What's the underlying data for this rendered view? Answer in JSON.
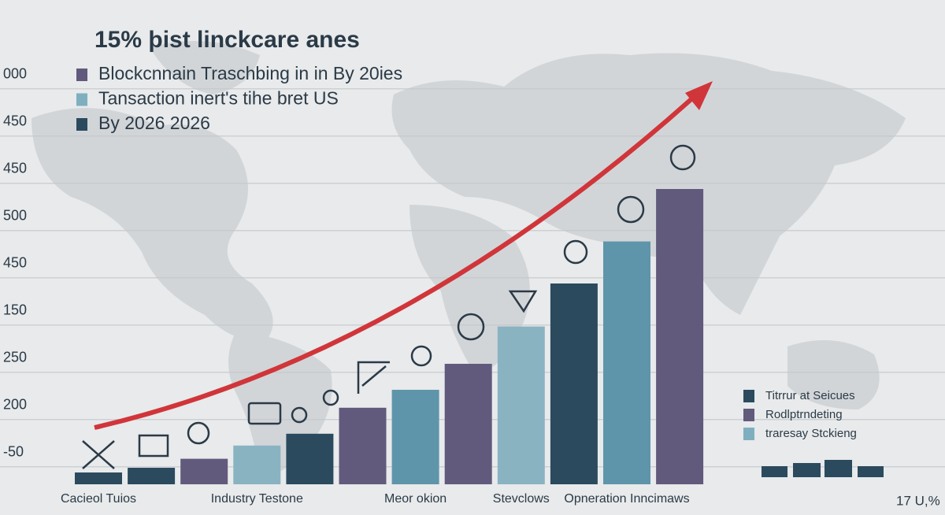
{
  "chart_data": {
    "type": "bar",
    "title": "15% þist linckcare anes",
    "legend": [
      {
        "label": "Blockcnnain Traschbing in in By 20ies",
        "color": "#625a7c"
      },
      {
        "label": "Tansaction inert's tihe bret US",
        "color": "#7fafbf"
      },
      {
        "label": "By 2026 2026",
        "color": "#2b4a5e"
      }
    ],
    "legend2": [
      {
        "label": "Titrrur at Seicues",
        "color": "#2b4a5e"
      },
      {
        "label": "Rodlptrndeting",
        "color": "#625a7c"
      },
      {
        "label": "traresay Stckieng",
        "color": "#7fafbf"
      }
    ],
    "categories": [
      "Cacieol Tuios",
      null,
      null,
      "Industry Testone",
      null,
      null,
      "Meor okion",
      null,
      "Stevclows",
      null,
      "Opneration Inncimaws",
      null
    ],
    "values": [
      -0.12,
      -0.02,
      0.17,
      0.45,
      0.7,
      1.25,
      1.63,
      2.18,
      2.97,
      3.88,
      4.77,
      5.88
    ],
    "colors": [
      "#2b4a5e",
      "#2b4a5e",
      "#625a7c",
      "#8ab3c2",
      "#2b4a5e",
      "#625a7c",
      "#5f95aa",
      "#625a7c",
      "#8ab3c2",
      "#2b4a5e",
      "#5f95aa",
      "#625a7c"
    ],
    "ylim": [
      -0.37,
      8.63
    ],
    "yticks": [
      {
        "value": 0,
        "label": "-50"
      },
      {
        "value": 1,
        "label": "200"
      },
      {
        "value": 2,
        "label": "250"
      },
      {
        "value": 3,
        "label": "150"
      },
      {
        "value": 4,
        "label": "450"
      },
      {
        "value": 5,
        "label": "500"
      },
      {
        "value": 6,
        "label": "450"
      },
      {
        "value": 7,
        "label": "450"
      },
      {
        "value": 8,
        "label": "000"
      }
    ],
    "grid": true,
    "footnote": "17 U,%"
  }
}
